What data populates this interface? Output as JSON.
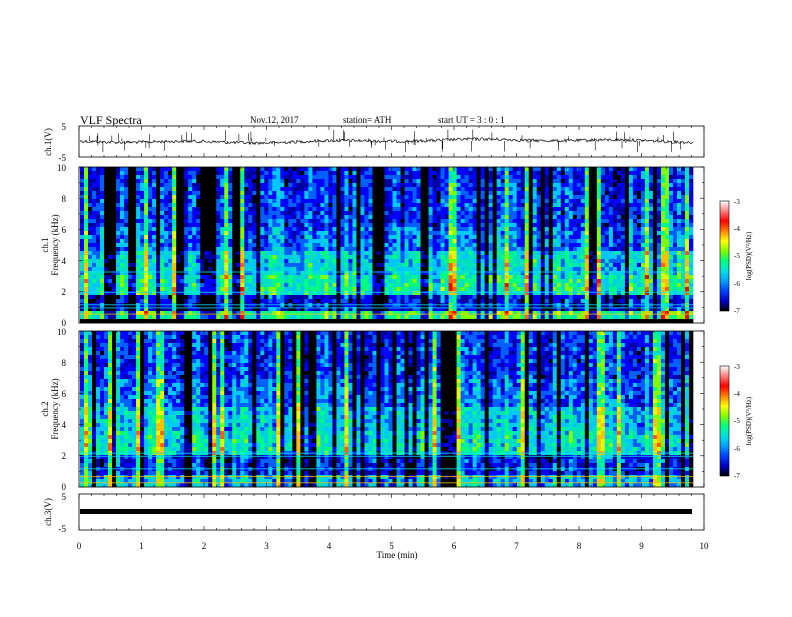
{
  "header": {
    "title": "VLF  Spectra",
    "date": "Nov.12, 2017",
    "station": "station= ATH",
    "start": "start  UT  =    3  : 0   : 1"
  },
  "chart_data": [
    {
      "type": "line",
      "panel": "ch1-waveform",
      "ylabel": "ch.1(V)",
      "ylim": [
        -5,
        5
      ],
      "yticks": [
        "5",
        "-5"
      ],
      "xlim": [
        0,
        10
      ],
      "color": "#000000"
    },
    {
      "type": "heatmap",
      "panel": "ch1-spectrogram",
      "ylabel_top": "ch.1",
      "ylabel": "Frequency  (kHz)",
      "ylim": [
        0,
        10
      ],
      "yticks": [
        "0",
        "2",
        "4",
        "6",
        "8",
        "10"
      ],
      "xlim": [
        0,
        10
      ],
      "colorbar": {
        "label": "log(PSD)(V²/Hz)",
        "ticks": [
          "-3",
          "-4",
          "-5",
          "-6",
          "-7"
        ],
        "range": [
          -7,
          -3
        ]
      }
    },
    {
      "type": "heatmap",
      "panel": "ch2-spectrogram",
      "ylabel_top": "ch.2",
      "ylabel": "Frequency  (kHz)",
      "ylim": [
        0,
        10
      ],
      "yticks": [
        "0",
        "2",
        "4",
        "6",
        "8",
        "10"
      ],
      "xlim": [
        0,
        10
      ],
      "colorbar": {
        "label": "log(PSD)(V²/Hz)",
        "ticks": [
          "-3",
          "-4",
          "-5",
          "-6",
          "-7"
        ],
        "range": [
          -7,
          -3
        ]
      }
    },
    {
      "type": "line",
      "panel": "ch3-waveform",
      "ylabel": "ch.3(V)",
      "ylim": [
        -5,
        5
      ],
      "yticks": [
        "5",
        "-5"
      ],
      "xlim": [
        0,
        10
      ],
      "color": "#000000"
    }
  ],
  "xaxis": {
    "label": "Time  (min)",
    "ticks": [
      "0",
      "1",
      "2",
      "3",
      "4",
      "5",
      "6",
      "7",
      "8",
      "9",
      "10"
    ]
  },
  "colormap": [
    "#000000",
    "#0000a0",
    "#0000ff",
    "#0060ff",
    "#00c8ff",
    "#00e0c0",
    "#00ff80",
    "#80ff00",
    "#e0ff00",
    "#ffc000",
    "#ff6000",
    "#ff0000",
    "#ff8080",
    "#ffffff"
  ]
}
